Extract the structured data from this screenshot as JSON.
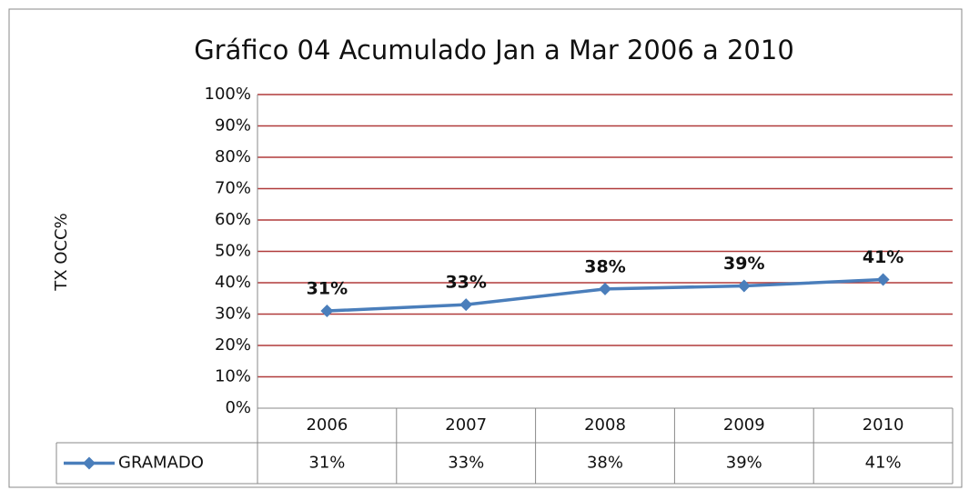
{
  "chart_data": {
    "type": "line",
    "title": "Gráfico 04 Acumulado Jan a Mar  2006 a 2010",
    "y_label": "TX OCC%",
    "categories": [
      "2006",
      "2007",
      "2008",
      "2009",
      "2010"
    ],
    "series": [
      {
        "name": "GRAMADO",
        "color": "#4a7ebb",
        "values": [
          31,
          33,
          38,
          39,
          41
        ],
        "value_labels": [
          "31%",
          "33%",
          "38%",
          "39%",
          "41%"
        ]
      }
    ],
    "ylim": [
      0,
      100
    ],
    "yticks": [
      {
        "value": 0,
        "label": "0%"
      },
      {
        "value": 10,
        "label": "10%"
      },
      {
        "value": 20,
        "label": "20%"
      },
      {
        "value": 30,
        "label": "30%"
      },
      {
        "value": 40,
        "label": "40%"
      },
      {
        "value": 50,
        "label": "50%"
      },
      {
        "value": 60,
        "label": "60%"
      },
      {
        "value": 70,
        "label": "70%"
      },
      {
        "value": 80,
        "label": "80%"
      },
      {
        "value": 90,
        "label": "90%"
      },
      {
        "value": 100,
        "label": "100%"
      }
    ],
    "grid": true,
    "grid_color": "#b03a3a",
    "data_table": true
  }
}
